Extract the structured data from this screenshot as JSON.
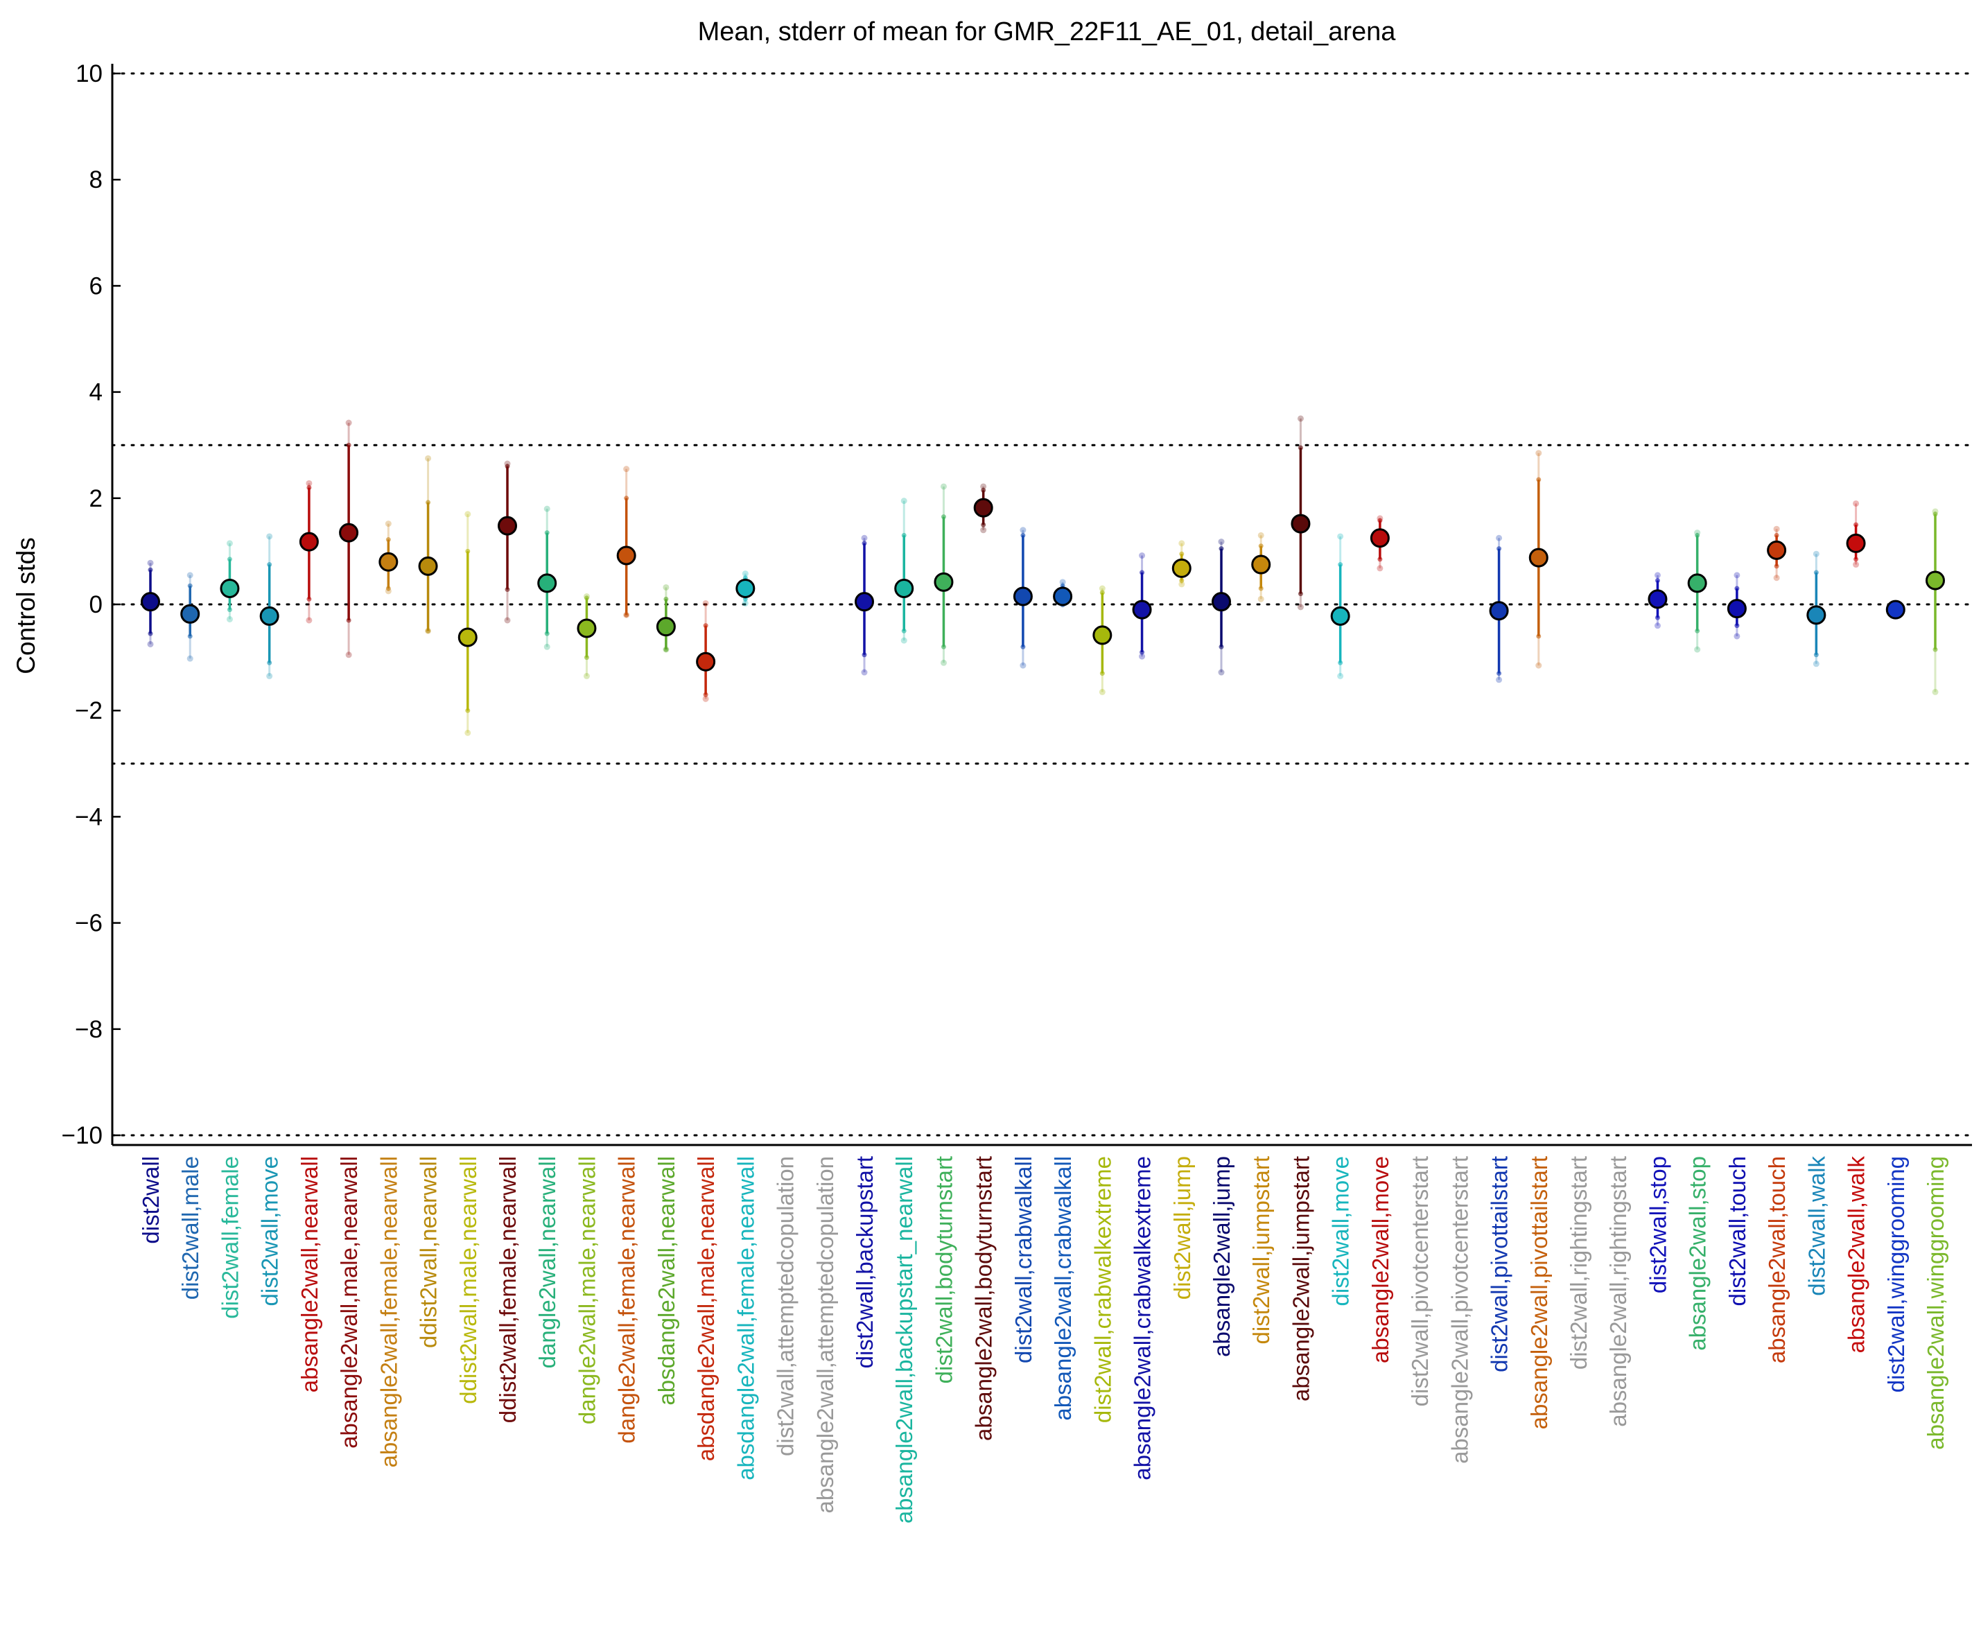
{
  "chart_data": {
    "type": "scatter",
    "title": "Mean, stderr of mean for GMR_22F11_AE_01, detail_arena",
    "xlabel": "",
    "ylabel": "Control stds",
    "ylim": [
      -10,
      10
    ],
    "yticks": [
      10,
      8,
      6,
      4,
      2,
      0,
      -2,
      -4,
      -6,
      -8,
      -10
    ],
    "ytick_labels": [
      "10",
      "8",
      "6",
      "4",
      "2",
      "0",
      "−2",
      "−4",
      "−6",
      "−8",
      "−10"
    ],
    "reference_lines": [
      10,
      3,
      0,
      -3,
      -10
    ],
    "grid": false,
    "points": [
      {
        "label": "dist2wall",
        "mean": 0.05,
        "err_lo": -0.55,
        "err_hi": 0.65,
        "ext_lo": -0.75,
        "ext_hi": 0.78,
        "color": "#0d0d8a"
      },
      {
        "label": "dist2wall,male",
        "mean": -0.18,
        "err_lo": -0.6,
        "err_hi": 0.35,
        "ext_lo": -1.02,
        "ext_hi": 0.55,
        "color": "#1f67b0"
      },
      {
        "label": "dist2wall,female",
        "mean": 0.3,
        "err_lo": -0.1,
        "err_hi": 0.85,
        "ext_lo": -0.28,
        "ext_hi": 1.15,
        "color": "#28b89a"
      },
      {
        "label": "dist2wall,move",
        "mean": -0.22,
        "err_lo": -1.1,
        "err_hi": 0.75,
        "ext_lo": -1.35,
        "ext_hi": 1.28,
        "color": "#1996b4"
      },
      {
        "label": "absangle2wall,nearwall",
        "mean": 1.18,
        "err_lo": 0.1,
        "err_hi": 2.2,
        "ext_lo": -0.3,
        "ext_hi": 2.28,
        "color": "#b80c0c"
      },
      {
        "label": "absangle2wall,male,nearwall",
        "mean": 1.35,
        "err_lo": -0.3,
        "err_hi": 3.0,
        "ext_lo": -0.95,
        "ext_hi": 3.42,
        "color": "#8a0b0b"
      },
      {
        "label": "absangle2wall,female,nearwall",
        "mean": 0.8,
        "err_lo": 0.3,
        "err_hi": 1.22,
        "ext_lo": 0.25,
        "ext_hi": 1.52,
        "color": "#c47f12"
      },
      {
        "label": "ddist2wall,nearwall",
        "mean": 0.72,
        "err_lo": -0.5,
        "err_hi": 1.92,
        "ext_lo": -0.5,
        "ext_hi": 2.75,
        "color": "#b88a0c"
      },
      {
        "label": "ddist2wall,male,nearwall",
        "mean": -0.62,
        "err_lo": -2.0,
        "err_hi": 1.0,
        "ext_lo": -2.42,
        "ext_hi": 1.7,
        "color": "#b8b80c"
      },
      {
        "label": "ddist2wall,female,nearwall",
        "mean": 1.48,
        "err_lo": 0.28,
        "err_hi": 2.6,
        "ext_lo": -0.3,
        "ext_hi": 2.65,
        "color": "#6e0b0b"
      },
      {
        "label": "dangle2wall,nearwall",
        "mean": 0.4,
        "err_lo": -0.55,
        "err_hi": 1.35,
        "ext_lo": -0.8,
        "ext_hi": 1.8,
        "color": "#27b07a"
      },
      {
        "label": "dangle2wall,male,nearwall",
        "mean": -0.45,
        "err_lo": -1.0,
        "err_hi": 0.12,
        "ext_lo": -1.35,
        "ext_hi": 0.15,
        "color": "#8bb81f"
      },
      {
        "label": "dangle2wall,female,nearwall",
        "mean": 0.92,
        "err_lo": -0.2,
        "err_hi": 2.0,
        "ext_lo": -0.2,
        "ext_hi": 2.55,
        "color": "#c4520c"
      },
      {
        "label": "absdangle2wall,nearwall",
        "mean": -0.42,
        "err_lo": -0.85,
        "err_hi": 0.1,
        "ext_lo": -0.85,
        "ext_hi": 0.32,
        "color": "#5ca82b"
      },
      {
        "label": "absdangle2wall,male,nearwall",
        "mean": -1.08,
        "err_lo": -1.7,
        "err_hi": -0.4,
        "ext_lo": -1.78,
        "ext_hi": 0.02,
        "color": "#c4280c"
      },
      {
        "label": "absdangle2wall,female,nearwall",
        "mean": 0.3,
        "err_lo": 0.1,
        "err_hi": 0.5,
        "ext_lo": 0.02,
        "ext_hi": 0.58,
        "color": "#17b5bd"
      },
      {
        "label": "dist2wall,attemptedcopulation",
        "mean": null,
        "color": "#999999"
      },
      {
        "label": "absangle2wall,attemptedcopulation",
        "mean": null,
        "color": "#999999"
      },
      {
        "label": "dist2wall,backupstart",
        "mean": 0.05,
        "err_lo": -0.95,
        "err_hi": 1.15,
        "ext_lo": -1.28,
        "ext_hi": 1.25,
        "color": "#1212a6"
      },
      {
        "label": "absangle2wall,backupstart_nearwall",
        "mean": 0.3,
        "err_lo": -0.5,
        "err_hi": 1.3,
        "ext_lo": -0.68,
        "ext_hi": 1.95,
        "color": "#1ab59f"
      },
      {
        "label": "dist2wall,bodyturnstart",
        "mean": 0.42,
        "err_lo": -0.8,
        "err_hi": 1.65,
        "ext_lo": -1.1,
        "ext_hi": 2.22,
        "color": "#3fb05a"
      },
      {
        "label": "absangle2wall,bodyturnstart",
        "mean": 1.82,
        "err_lo": 1.5,
        "err_hi": 2.15,
        "ext_lo": 1.4,
        "ext_hi": 2.22,
        "color": "#5e0b0b"
      },
      {
        "label": "dist2wall,crabwalkall",
        "mean": 0.15,
        "err_lo": -0.8,
        "err_hi": 1.3,
        "ext_lo": -1.15,
        "ext_hi": 1.4,
        "color": "#1248b0"
      },
      {
        "label": "absangle2wall,crabwalkall",
        "mean": 0.15,
        "err_lo": 0.0,
        "err_hi": 0.35,
        "ext_lo": 0.0,
        "ext_hi": 0.42,
        "color": "#1258b8"
      },
      {
        "label": "dist2wall,crabwalkextreme",
        "mean": -0.58,
        "err_lo": -1.3,
        "err_hi": 0.22,
        "ext_lo": -1.65,
        "ext_hi": 0.3,
        "color": "#a6b80c"
      },
      {
        "label": "absangle2wall,crabwalkextreme",
        "mean": -0.1,
        "err_lo": -0.9,
        "err_hi": 0.6,
        "ext_lo": -0.98,
        "ext_hi": 0.92,
        "color": "#1212a6"
      },
      {
        "label": "dist2wall,jump",
        "mean": 0.68,
        "err_lo": 0.45,
        "err_hi": 0.95,
        "ext_lo": 0.38,
        "ext_hi": 1.15,
        "color": "#c4ad0c"
      },
      {
        "label": "absangle2wall,jump",
        "mean": 0.05,
        "err_lo": -0.8,
        "err_hi": 1.05,
        "ext_lo": -1.28,
        "ext_hi": 1.18,
        "color": "#0a0a6e"
      },
      {
        "label": "dist2wall,jumpstart",
        "mean": 0.75,
        "err_lo": 0.3,
        "err_hi": 1.1,
        "ext_lo": 0.1,
        "ext_hi": 1.3,
        "color": "#c4870c"
      },
      {
        "label": "absangle2wall,jumpstart",
        "mean": 1.52,
        "err_lo": 0.2,
        "err_hi": 2.95,
        "ext_lo": -0.05,
        "ext_hi": 3.5,
        "color": "#5a0a0a"
      },
      {
        "label": "dist2wall,move",
        "mean": -0.22,
        "err_lo": -1.1,
        "err_hi": 0.75,
        "ext_lo": -1.35,
        "ext_hi": 1.28,
        "color": "#17b5bd"
      },
      {
        "label": "absangle2wall,move",
        "mean": 1.25,
        "err_lo": 0.85,
        "err_hi": 1.58,
        "ext_lo": 0.68,
        "ext_hi": 1.62,
        "color": "#b80c0c"
      },
      {
        "label": "dist2wall,pivotcenterstart",
        "mean": null,
        "color": "#999999"
      },
      {
        "label": "absangle2wall,pivotcenterstart",
        "mean": null,
        "color": "#999999"
      },
      {
        "label": "dist2wall,pivottailstart",
        "mean": -0.12,
        "err_lo": -1.3,
        "err_hi": 1.05,
        "ext_lo": -1.42,
        "ext_hi": 1.25,
        "color": "#1238b0"
      },
      {
        "label": "absangle2wall,pivottailstart",
        "mean": 0.88,
        "err_lo": -0.6,
        "err_hi": 2.35,
        "ext_lo": -1.15,
        "ext_hi": 2.85,
        "color": "#c4600c"
      },
      {
        "label": "dist2wall,rightingstart",
        "mean": null,
        "color": "#999999"
      },
      {
        "label": "absangle2wall,rightingstart",
        "mean": null,
        "color": "#999999"
      },
      {
        "label": "dist2wall,stop",
        "mean": 0.1,
        "err_lo": -0.25,
        "err_hi": 0.45,
        "ext_lo": -0.4,
        "ext_hi": 0.55,
        "color": "#1212b8"
      },
      {
        "label": "absangle2wall,stop",
        "mean": 0.4,
        "err_lo": -0.5,
        "err_hi": 1.3,
        "ext_lo": -0.85,
        "ext_hi": 1.35,
        "color": "#36b06a"
      },
      {
        "label": "dist2wall,touch",
        "mean": -0.08,
        "err_lo": -0.4,
        "err_hi": 0.3,
        "ext_lo": -0.6,
        "ext_hi": 0.55,
        "color": "#0f0fb0"
      },
      {
        "label": "absangle2wall,touch",
        "mean": 1.02,
        "err_lo": 0.72,
        "err_hi": 1.3,
        "ext_lo": 0.5,
        "ext_hi": 1.42,
        "color": "#c43a0c"
      },
      {
        "label": "dist2wall,walk",
        "mean": -0.2,
        "err_lo": -0.95,
        "err_hi": 0.6,
        "ext_lo": -1.12,
        "ext_hi": 0.95,
        "color": "#1a86b8"
      },
      {
        "label": "absangle2wall,walk",
        "mean": 1.15,
        "err_lo": 0.85,
        "err_hi": 1.5,
        "ext_lo": 0.75,
        "ext_hi": 1.9,
        "color": "#c40c0c"
      },
      {
        "label": "dist2wall,winggrooming",
        "mean": -0.1,
        "err_lo": -0.1,
        "err_hi": -0.1,
        "ext_lo": -0.1,
        "ext_hi": -0.1,
        "color": "#1235c4"
      },
      {
        "label": "absangle2wall,winggrooming",
        "mean": 0.45,
        "err_lo": -0.85,
        "err_hi": 1.7,
        "ext_lo": -1.65,
        "ext_hi": 1.75,
        "color": "#7ab82b"
      }
    ]
  }
}
